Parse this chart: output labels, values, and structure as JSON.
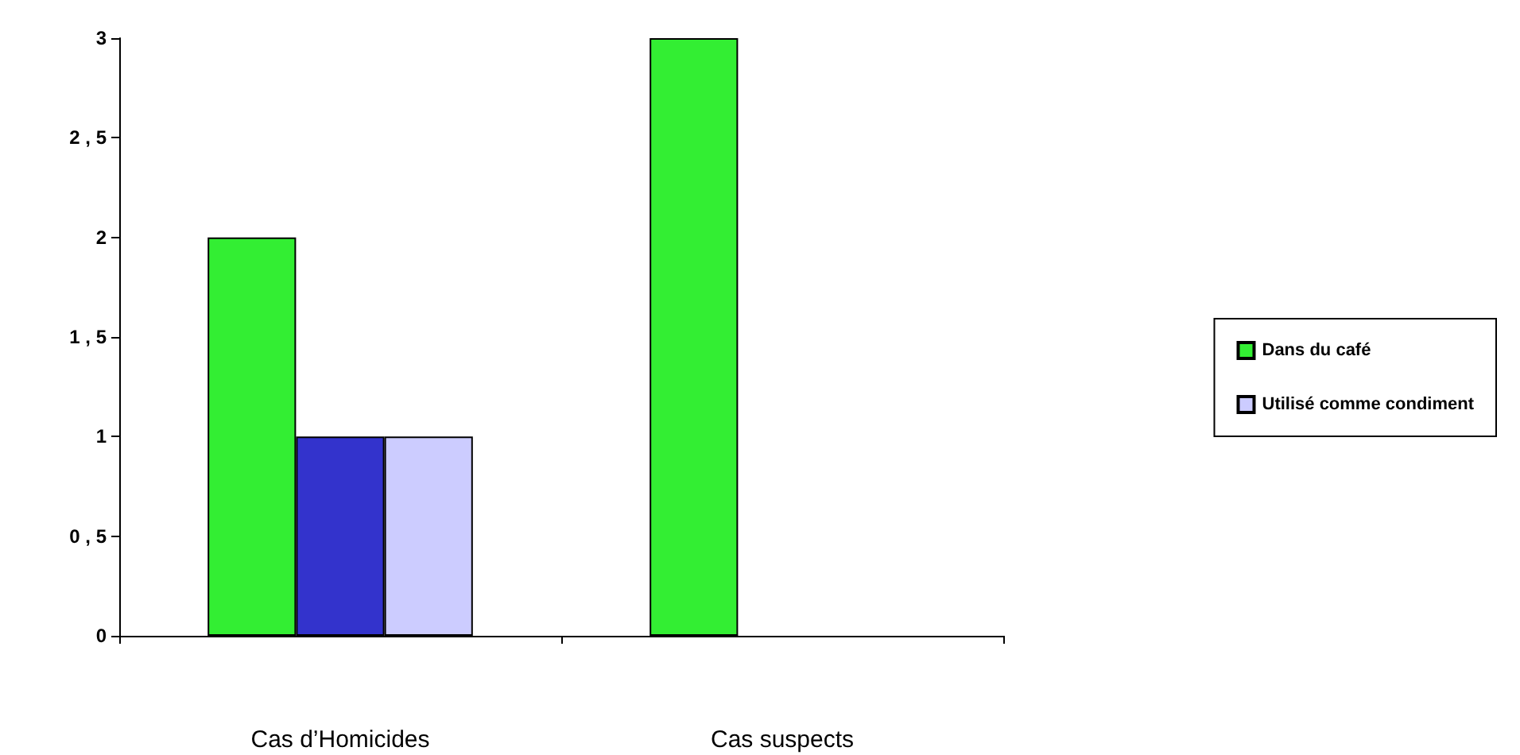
{
  "chart_data": {
    "type": "bar",
    "categories": [
      "Cas d’Homicides",
      "Cas suspects"
    ],
    "series": [
      {
        "name": "Dans du café",
        "color": "#33ee33",
        "values": [
          2,
          3
        ]
      },
      {
        "color": "#3333cc",
        "values": [
          1,
          null
        ]
      },
      {
        "name": "Utilisé comme condiment",
        "color": "#ccccff",
        "values": [
          1,
          null
        ]
      }
    ],
    "ylim": [
      0,
      3
    ],
    "yticks": [
      0,
      {
        "value": 0.5,
        "label": "0 , 5"
      },
      1,
      {
        "value": 1.5,
        "label": "1 , 5"
      },
      2,
      {
        "value": 2.5,
        "label": "2 , 5"
      },
      3
    ],
    "grid": false,
    "legend": "right"
  }
}
